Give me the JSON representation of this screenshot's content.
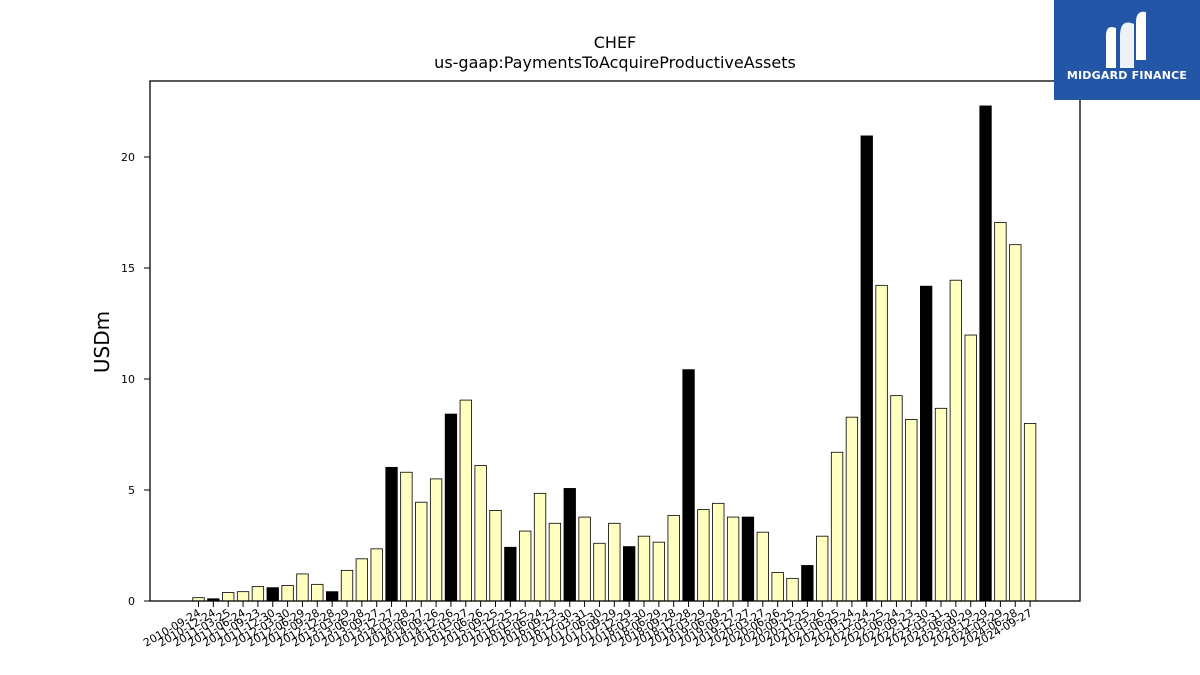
{
  "logo": {
    "text": "MIDGARD FINANCE",
    "background": "#2456a8"
  },
  "chart_data": {
    "type": "bar",
    "title": "CHEF",
    "subtitle": "us-gaap:PaymentsToAcquireProductiveAssets",
    "xlabel": "",
    "ylabel": "USDm",
    "ylim": [
      0,
      23.5
    ],
    "yticks": [
      0,
      5,
      10,
      15,
      20
    ],
    "grid": false,
    "colors": {
      "fiscal_year_end": "#000000",
      "interim": "#ffffc0",
      "edge": "#000000"
    },
    "categories": [
      "2010-09-24",
      "2010-12-24",
      "2011-03-25",
      "2011-06-24",
      "2011-09-23",
      "2011-12-30",
      "2012-03-30",
      "2012-06-29",
      "2012-09-28",
      "2012-12-28",
      "2013-03-29",
      "2013-06-28",
      "2013-09-27",
      "2013-12-27",
      "2014-03-28",
      "2014-06-27",
      "2014-09-26",
      "2014-12-26",
      "2015-03-27",
      "2015-06-26",
      "2015-09-25",
      "2015-12-25",
      "2016-03-25",
      "2016-06-24",
      "2016-09-23",
      "2016-12-30",
      "2017-03-31",
      "2017-06-30",
      "2017-09-29",
      "2017-12-29",
      "2018-03-30",
      "2018-06-29",
      "2018-09-28",
      "2018-12-28",
      "2019-03-29",
      "2019-06-28",
      "2019-09-27",
      "2019-12-27",
      "2020-03-27",
      "2020-06-26",
      "2020-09-25",
      "2020-12-25",
      "2021-03-26",
      "2021-06-25",
      "2021-09-24",
      "2021-12-24",
      "2022-03-25",
      "2022-06-24",
      "2022-09-23",
      "2022-12-30",
      "2023-03-31",
      "2023-06-30",
      "2023-09-29",
      "2023-12-29",
      "2024-03-29",
      "2024-06-28",
      "2024-09-27"
    ],
    "values": [
      0.15,
      0.1,
      0.38,
      0.42,
      0.65,
      0.6,
      0.7,
      1.22,
      0.75,
      0.42,
      1.38,
      1.9,
      2.35,
      6.02,
      5.8,
      4.45,
      5.5,
      8.42,
      9.05,
      6.1,
      4.08,
      2.42,
      3.15,
      4.85,
      3.5,
      5.07,
      3.78,
      2.6,
      3.5,
      2.45,
      2.92,
      2.65,
      3.85,
      10.42,
      4.12,
      4.4,
      3.78,
      3.78,
      3.1,
      1.28,
      1.02,
      1.6,
      2.92,
      6.7,
      8.28,
      20.95,
      14.22,
      9.25,
      8.18,
      14.18,
      8.68,
      14.45,
      11.98,
      22.3,
      17.05,
      16.05,
      8.0
    ],
    "fiscal_year_end": [
      false,
      true,
      false,
      false,
      false,
      true,
      false,
      false,
      false,
      true,
      false,
      false,
      false,
      true,
      false,
      false,
      false,
      true,
      false,
      false,
      false,
      true,
      false,
      false,
      false,
      true,
      false,
      false,
      false,
      true,
      false,
      false,
      false,
      true,
      false,
      false,
      false,
      true,
      false,
      false,
      false,
      true,
      false,
      false,
      false,
      true,
      false,
      false,
      false,
      true,
      false,
      false,
      false,
      true,
      false,
      false,
      false
    ]
  }
}
